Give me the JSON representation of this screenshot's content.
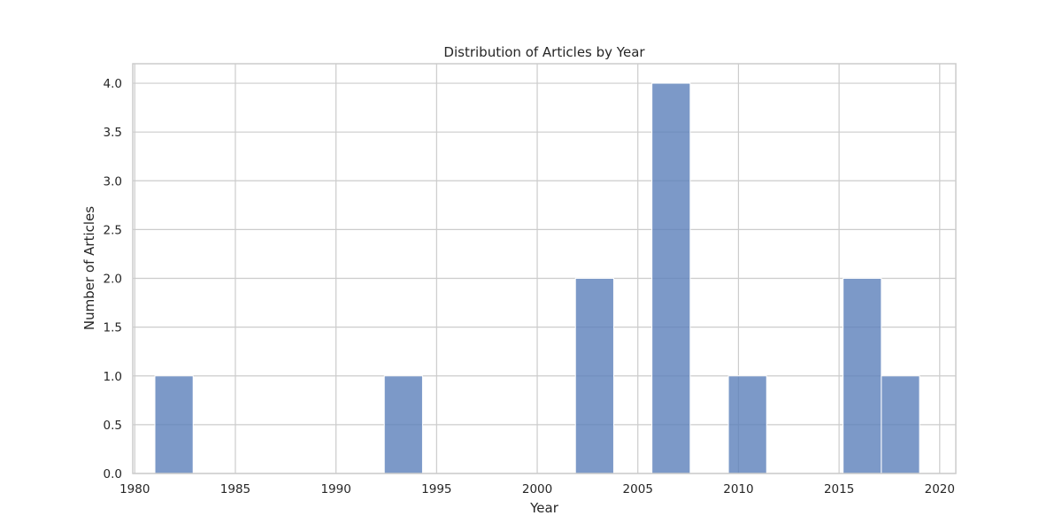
{
  "chart_data": {
    "type": "bar",
    "title": "Distribution of Articles by Year",
    "xlabel": "Year",
    "ylabel": "Number of Articles",
    "xlim": [
      1979.9,
      2020.8
    ],
    "ylim": [
      0,
      4.2
    ],
    "xticks": [
      1980,
      1985,
      1990,
      1995,
      2000,
      2005,
      2010,
      2015,
      2020
    ],
    "yticks": [
      0.0,
      0.5,
      1.0,
      1.5,
      2.0,
      2.5,
      3.0,
      3.5,
      4.0
    ],
    "bins": [
      {
        "x0": 1981.0,
        "x1": 1982.9,
        "value": 1
      },
      {
        "x0": 1992.4,
        "x1": 1994.3,
        "value": 1
      },
      {
        "x0": 2001.9,
        "x1": 2003.8,
        "value": 2
      },
      {
        "x0": 2005.7,
        "x1": 2007.6,
        "value": 4
      },
      {
        "x0": 2009.5,
        "x1": 2011.4,
        "value": 1
      },
      {
        "x0": 2015.2,
        "x1": 2017.1,
        "value": 2
      },
      {
        "x0": 2017.1,
        "x1": 2019.0,
        "value": 1
      }
    ],
    "grid": true,
    "legend": "none",
    "colors": {
      "bar": "#5b7fba",
      "bar_edge": "#ffffff",
      "grid": "#cccccc",
      "frame": "#cccccc",
      "text": "#262626"
    }
  }
}
